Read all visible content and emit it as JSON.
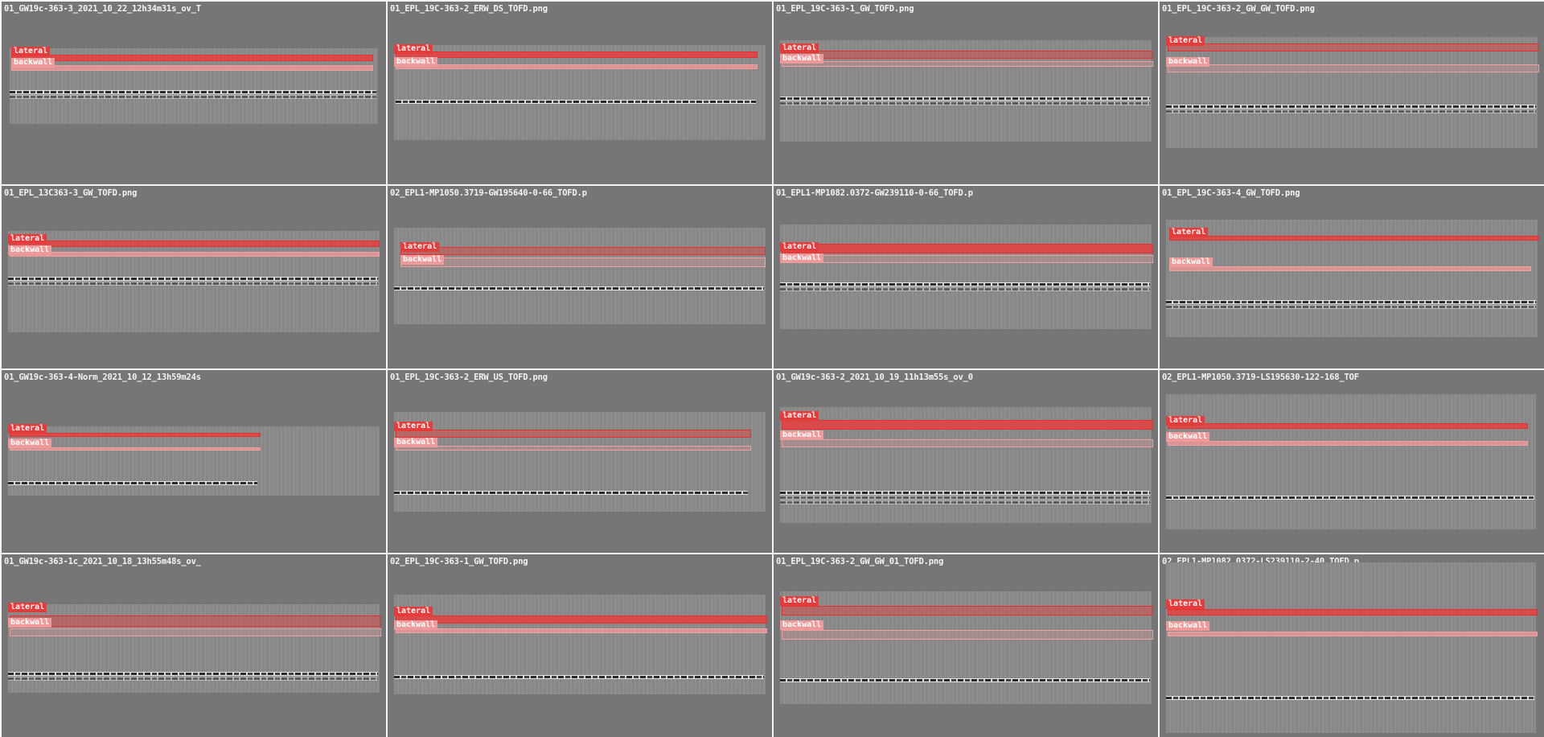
{
  "legend": {
    "lateral": "lateral",
    "backwall": "backwall",
    "lateral_color": "#e53b3b",
    "backwall_color": "#ef9a9a"
  },
  "cells": [
    {
      "title": "01_GW19c-363-3_2021_10_22_12h34m31s_ov_T"
    },
    {
      "title": "01_EPL_19C-363-2_ERW_DS_TOFD.png"
    },
    {
      "title": "01_EPL_19C-363-1_GW_TOFD.png"
    },
    {
      "title": "01_EPL_19C-363-2_GW_GW_TOFD.png"
    },
    {
      "title": "01_EPL_13C363-3_GW_TOFD.png"
    },
    {
      "title": "02_EPL1-MP1050.3719-GW195640-0-66_TOFD.p"
    },
    {
      "title": "01_EPL1-MP1082.0372-GW239110-0-66_TOFD.p"
    },
    {
      "title": "01_EPL_19C-363-4_GW_TOFD.png"
    },
    {
      "title": "01_GW19c-363-4-Norm_2021_10_12_13h59m24s"
    },
    {
      "title": "01_EPL_19C-363-2_ERW_US_TOFD.png"
    },
    {
      "title": "01_GW19c-363-2_2021_10_19_11h13m55s_ov_0"
    },
    {
      "title": "02_EPL1-MP1050.3719-LS195630-122-168_TOF"
    },
    {
      "title": "01_GW19c-363-1c_2021_10_18_13h55m48s_ov_"
    },
    {
      "title": "02_EPL_19C-363-1_GW_TOFD.png"
    },
    {
      "title": "01_EPL_19C-363-2_GW_GW_01_TOFD.png"
    },
    {
      "title": "02_EPL1-MP1082.0372-LS239110-2-40_TOFD.p"
    }
  ]
}
